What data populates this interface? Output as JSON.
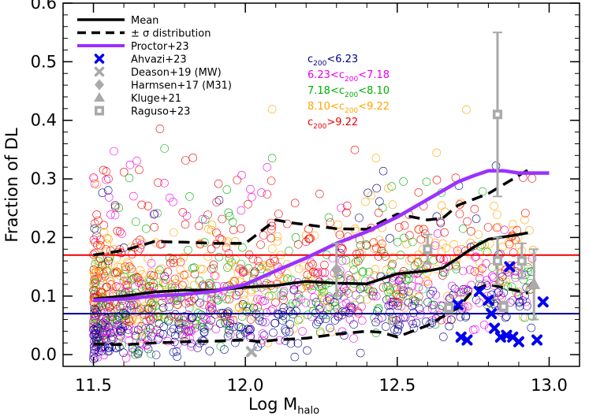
{
  "chart_data": {
    "type": "scatter",
    "xlabel": "Log M",
    "xlabel_sub": "halo",
    "ylabel": "Fraction of DL",
    "xlim": [
      11.4,
      13.1
    ],
    "ylim": [
      -0.02,
      0.6
    ],
    "xticks": [
      "11.5",
      "12.0",
      "12.5",
      "13.0"
    ],
    "xtick_values": [
      11.5,
      12.0,
      12.5,
      13.0
    ],
    "yticks": [
      "0.0",
      "0.1",
      "0.2",
      "0.3",
      "0.4",
      "0.5",
      "0.6"
    ],
    "ytick_values": [
      0.0,
      0.1,
      0.2,
      0.3,
      0.4,
      0.5,
      0.6
    ],
    "grid": false,
    "legend_position": "top-left",
    "legend": [
      {
        "label": "Mean",
        "style": "solid-line",
        "color": "#000000"
      },
      {
        "label": "± σ distribution",
        "style": "dashed-line",
        "color": "#000000"
      },
      {
        "label": "Proctor+23",
        "style": "solid-line",
        "color": "#9b30ff"
      },
      {
        "label": "Ahvazi+23",
        "style": "x-marker",
        "color": "#0000ee"
      },
      {
        "label": "Deason+19 (MW)",
        "style": "x-marker",
        "color": "#aaaaaa"
      },
      {
        "label": "Harmsen+17 (M31)",
        "style": "diamond-marker",
        "color": "#aaaaaa"
      },
      {
        "label": "Kluge+21",
        "style": "triangle-marker",
        "color": "#aaaaaa"
      },
      {
        "label": "Raguso+23",
        "style": "square-marker",
        "color": "#aaaaaa"
      }
    ],
    "concentration_bins": [
      {
        "pre": "c",
        "sub": "200",
        "post": "<6.23",
        "color": "#00008b"
      },
      {
        "pre": "6.23<c",
        "sub": "200",
        "post": "<7.18",
        "color": "#ee00ee"
      },
      {
        "pre": "7.18<c",
        "sub": "200",
        "post": "<8.10",
        "color": "#00b000"
      },
      {
        "pre": "8.10<c",
        "sub": "200",
        "post": "<9.22",
        "color": "#ffa500"
      },
      {
        "pre": "c",
        "sub": "200",
        "post": ">9.22",
        "color": "#ee0000"
      }
    ],
    "hlines": [
      {
        "y": 0.17,
        "color": "#ee0000"
      },
      {
        "y": 0.07,
        "color": "#00008b"
      }
    ],
    "series": [
      {
        "name": "Mean",
        "style": "solid",
        "color": "#000000",
        "x": [
          11.5,
          11.6,
          11.7,
          11.8,
          11.9,
          12.0,
          12.1,
          12.2,
          12.3,
          12.4,
          12.5,
          12.6,
          12.65,
          12.7,
          12.75,
          12.8,
          12.9,
          12.93
        ],
        "y": [
          0.095,
          0.1,
          0.107,
          0.11,
          0.11,
          0.115,
          0.118,
          0.125,
          0.122,
          0.121,
          0.138,
          0.143,
          0.148,
          0.165,
          0.183,
          0.197,
          0.205,
          0.208
        ]
      },
      {
        "name": "σ upper",
        "style": "dashed",
        "color": "#000000",
        "x": [
          11.5,
          11.6,
          11.7,
          11.8,
          11.9,
          12.0,
          12.05,
          12.1,
          12.15,
          12.2,
          12.3,
          12.4,
          12.5,
          12.6,
          12.65,
          12.7,
          12.8,
          12.93
        ],
        "y": [
          0.17,
          0.178,
          0.193,
          0.192,
          0.19,
          0.19,
          0.21,
          0.23,
          0.225,
          0.222,
          0.215,
          0.214,
          0.24,
          0.23,
          0.233,
          0.255,
          0.275,
          0.315
        ]
      },
      {
        "name": "σ lower",
        "style": "dashed",
        "color": "#000000",
        "x": [
          11.5,
          11.6,
          11.7,
          11.8,
          11.9,
          12.0,
          12.05,
          12.1,
          12.2,
          12.3,
          12.4,
          12.45,
          12.5,
          12.55,
          12.6,
          12.7,
          12.75,
          12.8,
          12.93
        ],
        "y": [
          0.018,
          0.017,
          0.02,
          0.022,
          0.023,
          0.025,
          0.022,
          0.025,
          0.028,
          0.035,
          0.04,
          0.038,
          0.03,
          0.04,
          0.05,
          0.08,
          0.11,
          0.12,
          0.105
        ]
      },
      {
        "name": "Proctor+23",
        "style": "solid",
        "color": "#9b30ff",
        "x": [
          11.5,
          11.6,
          11.7,
          11.8,
          11.9,
          12.0,
          12.1,
          12.2,
          12.3,
          12.4,
          12.5,
          12.6,
          12.7,
          12.75,
          12.8,
          12.85,
          12.9,
          13.0
        ],
        "y": [
          0.093,
          0.095,
          0.1,
          0.103,
          0.108,
          0.12,
          0.143,
          0.165,
          0.19,
          0.21,
          0.235,
          0.265,
          0.295,
          0.305,
          0.314,
          0.314,
          0.31,
          0.31
        ]
      }
    ],
    "ahvazi23": [
      {
        "x": 12.7,
        "y": 0.085
      },
      {
        "x": 12.77,
        "y": 0.108
      },
      {
        "x": 12.8,
        "y": 0.093
      },
      {
        "x": 12.81,
        "y": 0.07
      },
      {
        "x": 12.87,
        "y": 0.15
      },
      {
        "x": 12.82,
        "y": 0.045
      },
      {
        "x": 12.84,
        "y": 0.03
      },
      {
        "x": 12.86,
        "y": 0.033
      },
      {
        "x": 12.88,
        "y": 0.03
      },
      {
        "x": 12.9,
        "y": 0.022
      },
      {
        "x": 12.71,
        "y": 0.03
      },
      {
        "x": 12.73,
        "y": 0.025
      },
      {
        "x": 12.98,
        "y": 0.09
      },
      {
        "x": 12.96,
        "y": 0.025
      }
    ],
    "deason19": [
      {
        "x": 12.02,
        "y": 0.005
      }
    ],
    "harmsen17": [
      {
        "x": 12.3,
        "y": 0.145,
        "err": 0.045
      }
    ],
    "kluge21": [
      {
        "x": 12.95,
        "y": 0.12,
        "err": 0.06
      }
    ],
    "raguso23": [
      {
        "x": 12.6,
        "y": 0.18,
        "err": 0.025
      },
      {
        "x": 12.67,
        "y": 0.08,
        "err": 0.008
      },
      {
        "x": 12.83,
        "y": 0.41,
        "err": 0.14
      },
      {
        "x": 12.83,
        "y": 0.16,
        "err": 0.04
      },
      {
        "x": 12.85,
        "y": 0.082,
        "err": 0.008
      },
      {
        "x": 12.91,
        "y": 0.16,
        "err": 0.03
      }
    ]
  }
}
